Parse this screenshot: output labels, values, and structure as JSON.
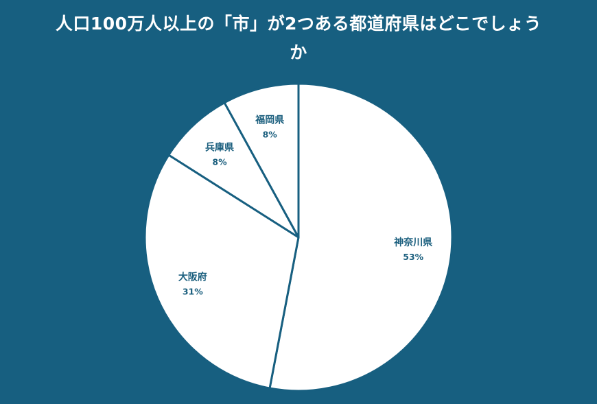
{
  "chart_data": {
    "type": "pie",
    "title": "人口100万人以上の「市」が2つある都道府県はどこでしょうか",
    "start_angle_deg": 0,
    "direction": "clockwise",
    "slices": [
      {
        "label": "神奈川県",
        "value": 53,
        "value_label": "53%"
      },
      {
        "label": "大阪府",
        "value": 31,
        "value_label": "31%"
      },
      {
        "label": "兵庫県",
        "value": 8,
        "value_label": "8%"
      },
      {
        "label": "福岡県",
        "value": 8,
        "value_label": "8%"
      }
    ],
    "colors": {
      "background": "#175f80",
      "slice_fill": "#ffffff",
      "label": "#1b5f7e"
    }
  }
}
